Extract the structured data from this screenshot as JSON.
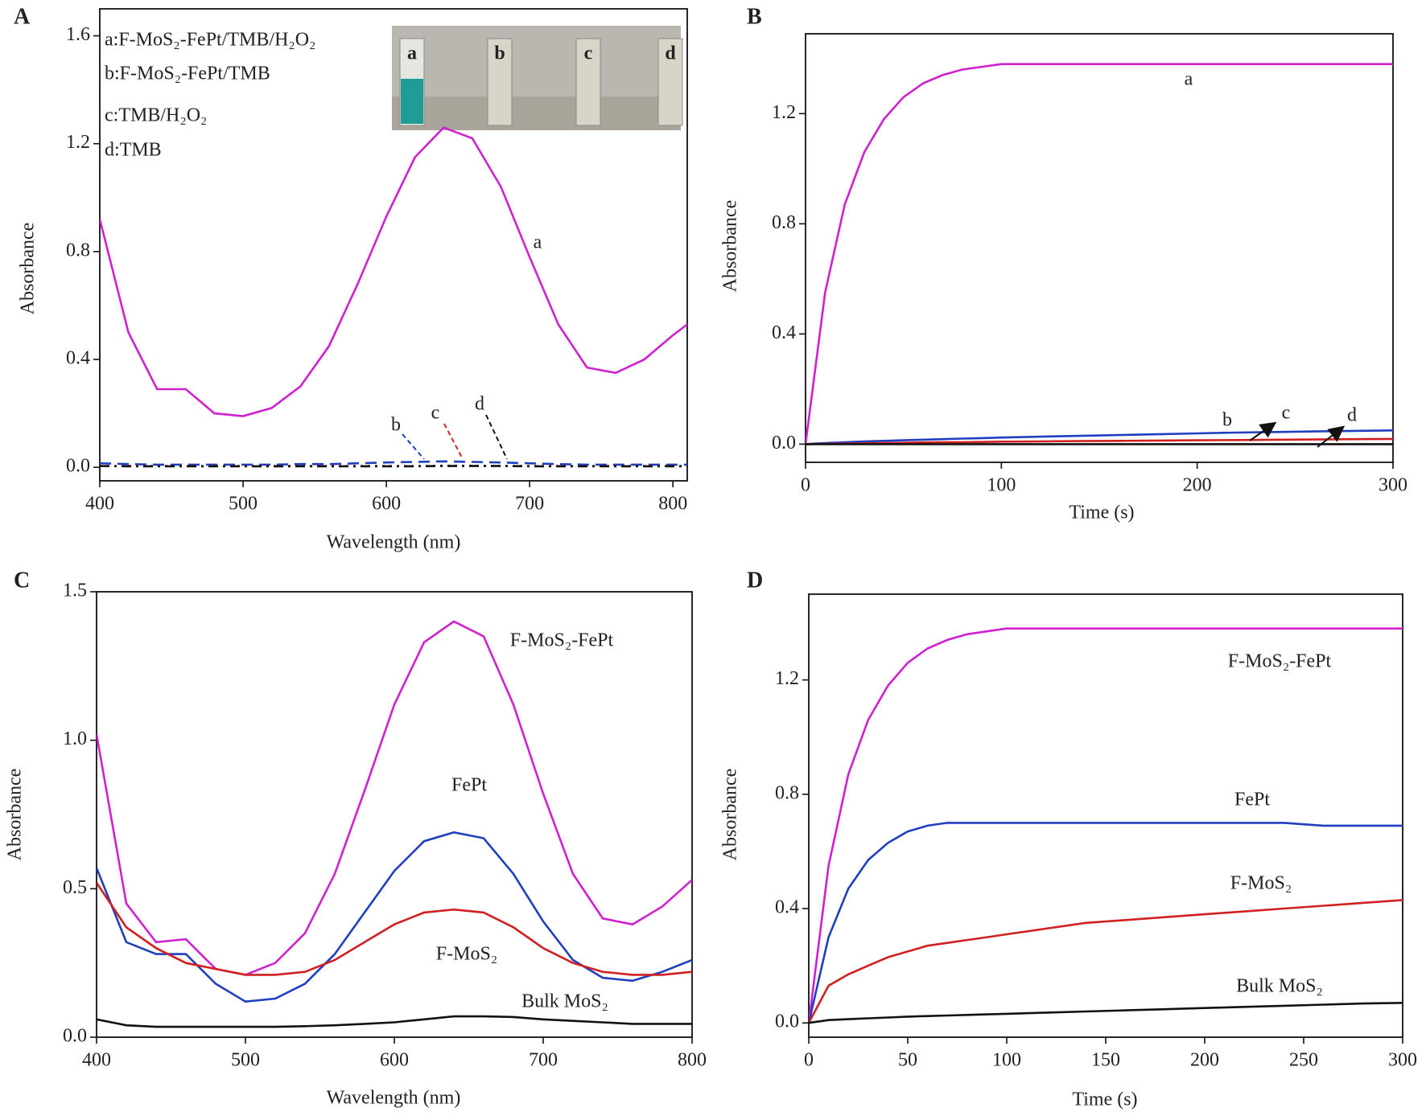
{
  "chart_data": [
    {
      "type": "line",
      "label": "A",
      "xlabel": "Wavelength (nm)",
      "ylabel": "Absorbance",
      "x": [
        400,
        420,
        440,
        460,
        480,
        500,
        520,
        540,
        560,
        580,
        600,
        620,
        640,
        660,
        680,
        700,
        720,
        740,
        760,
        780,
        800,
        810
      ],
      "xlim": [
        400,
        810
      ],
      "ylim": [
        -0.05,
        1.7
      ],
      "xticks": [
        400,
        500,
        600,
        700,
        800
      ],
      "yticks": [
        {
          "value": 0,
          "label": "0.0"
        },
        0.4,
        0.8,
        1.2,
        1.6
      ],
      "legend_text": [
        "a:F-MoS₂-FePt/TMB/H₂O₂",
        "b:F-MoS₂-FePt/TMB",
        "c:TMB/H₂O₂",
        "d:TMB"
      ],
      "inset_labels": [
        "a",
        "b",
        "c",
        "d"
      ],
      "series": [
        {
          "name": "a",
          "color": "#d020d0",
          "line_style": "solid",
          "values": [
            0.92,
            0.5,
            0.29,
            0.29,
            0.2,
            0.19,
            0.22,
            0.3,
            0.45,
            0.68,
            0.93,
            1.15,
            1.26,
            1.22,
            1.04,
            0.78,
            0.53,
            0.37,
            0.35,
            0.4,
            0.49,
            0.53
          ]
        },
        {
          "name": "b",
          "color": "#1f3fbf",
          "line_style": "dashed",
          "values": [
            0.015,
            0.012,
            0.01,
            0.01,
            0.01,
            0.01,
            0.01,
            0.012,
            0.012,
            0.015,
            0.018,
            0.02,
            0.022,
            0.02,
            0.018,
            0.015,
            0.012,
            0.01,
            0.01,
            0.01,
            0.01,
            0.01
          ]
        },
        {
          "name": "c",
          "color": "#d02020",
          "line_style": "dotted",
          "values": [
            0.005,
            0.005,
            0.005,
            0.005,
            0.005,
            0.005,
            0.005,
            0.005,
            0.005,
            0.005,
            0.005,
            0.005,
            0.006,
            0.006,
            0.005,
            0.005,
            0.005,
            0.005,
            0.005,
            0.005,
            0.005,
            0.005
          ]
        },
        {
          "name": "d",
          "color": "#111111",
          "line_style": "dashdot",
          "values": [
            0.005,
            0.004,
            0.004,
            0.004,
            0.004,
            0.004,
            0.004,
            0.004,
            0.004,
            0.004,
            0.004,
            0.004,
            0.005,
            0.005,
            0.005,
            0.004,
            0.004,
            0.004,
            0.004,
            0.004,
            0.004,
            0.004
          ]
        }
      ]
    },
    {
      "type": "line",
      "label": "B",
      "xlabel": "Time (s)",
      "ylabel": "Absorbance",
      "x": [
        0,
        10,
        20,
        30,
        40,
        50,
        60,
        70,
        80,
        90,
        100,
        120,
        140,
        160,
        180,
        200,
        220,
        240,
        260,
        280,
        300
      ],
      "xlim": [
        0,
        300
      ],
      "ylim": [
        -0.066,
        1.49
      ],
      "xticks": [
        0,
        100,
        200,
        300
      ],
      "yticks": [
        {
          "value": 0,
          "label": "0.0"
        },
        0.4,
        0.8,
        1.2
      ],
      "series": [
        {
          "name": "a",
          "color": "#d020d0",
          "line_style": "solid",
          "values": [
            0,
            0.55,
            0.87,
            1.06,
            1.18,
            1.26,
            1.31,
            1.34,
            1.36,
            1.37,
            1.38,
            1.38,
            1.38,
            1.38,
            1.38,
            1.38,
            1.38,
            1.38,
            1.38,
            1.38,
            1.38
          ]
        },
        {
          "name": "b",
          "color": "#1f3fbf",
          "line_style": "solid",
          "values": [
            0,
            0.004,
            0.007,
            0.01,
            0.012,
            0.014,
            0.016,
            0.018,
            0.02,
            0.022,
            0.024,
            0.027,
            0.03,
            0.033,
            0.036,
            0.039,
            0.042,
            0.044,
            0.046,
            0.048,
            0.05
          ]
        },
        {
          "name": "c",
          "color": "#d02020",
          "line_style": "solid",
          "values": [
            0,
            0.001,
            0.002,
            0.003,
            0.004,
            0.005,
            0.006,
            0.007,
            0.007,
            0.008,
            0.009,
            0.01,
            0.011,
            0.012,
            0.013,
            0.014,
            0.015,
            0.016,
            0.017,
            0.018,
            0.019
          ]
        },
        {
          "name": "d",
          "color": "#111111",
          "line_style": "solid",
          "values": [
            0,
            0,
            0,
            0,
            0,
            0,
            0,
            0,
            0,
            0,
            0,
            0,
            0,
            0,
            0,
            0,
            0,
            0,
            0,
            0,
            0
          ]
        }
      ]
    },
    {
      "type": "line",
      "label": "C",
      "xlabel": "Wavelength (nm)",
      "ylabel": "Absorbance",
      "x": [
        400,
        420,
        440,
        460,
        480,
        500,
        520,
        540,
        560,
        580,
        600,
        620,
        640,
        660,
        680,
        700,
        720,
        740,
        760,
        780,
        800
      ],
      "xlim": [
        400,
        800
      ],
      "ylim": [
        0,
        1.5
      ],
      "xticks": [
        400,
        500,
        600,
        700,
        800
      ],
      "yticks": [
        {
          "value": 0,
          "label": "0.0"
        },
        0.5,
        {
          "value": 1,
          "label": "1.0"
        },
        1.5
      ],
      "series": [
        {
          "name": "F-MoS₂-FePt",
          "color": "#d020d0",
          "line_style": "solid",
          "values": [
            1.02,
            0.45,
            0.32,
            0.33,
            0.23,
            0.21,
            0.25,
            0.35,
            0.55,
            0.83,
            1.12,
            1.33,
            1.4,
            1.35,
            1.12,
            0.82,
            0.55,
            0.4,
            0.38,
            0.44,
            0.53
          ]
        },
        {
          "name": "FePt",
          "color": "#1f3fbf",
          "line_style": "solid",
          "values": [
            0.57,
            0.32,
            0.28,
            0.28,
            0.18,
            0.12,
            0.13,
            0.18,
            0.28,
            0.42,
            0.56,
            0.66,
            0.69,
            0.67,
            0.55,
            0.39,
            0.26,
            0.2,
            0.19,
            0.22,
            0.26
          ]
        },
        {
          "name": "F-MoS₂",
          "color": "#d02020",
          "line_style": "solid",
          "values": [
            0.52,
            0.37,
            0.3,
            0.25,
            0.23,
            0.21,
            0.21,
            0.22,
            0.26,
            0.32,
            0.38,
            0.42,
            0.43,
            0.42,
            0.37,
            0.3,
            0.25,
            0.22,
            0.21,
            0.21,
            0.22
          ]
        },
        {
          "name": "Bulk MoS₂",
          "color": "#111111",
          "line_style": "solid",
          "values": [
            0.06,
            0.04,
            0.035,
            0.035,
            0.035,
            0.035,
            0.035,
            0.037,
            0.04,
            0.045,
            0.05,
            0.06,
            0.07,
            0.07,
            0.068,
            0.06,
            0.055,
            0.05,
            0.045,
            0.045,
            0.045
          ]
        }
      ]
    },
    {
      "type": "line",
      "label": "D",
      "xlabel": "Time (s)",
      "ylabel": "Absorbance",
      "x": [
        0,
        10,
        20,
        30,
        40,
        50,
        60,
        70,
        80,
        90,
        100,
        120,
        140,
        160,
        180,
        200,
        220,
        240,
        260,
        280,
        300
      ],
      "xlim": [
        0,
        300
      ],
      "ylim": [
        -0.05,
        1.5
      ],
      "xticks": [
        0,
        50,
        100,
        150,
        200,
        250,
        300
      ],
      "yticks": [
        {
          "value": 0,
          "label": "0.0"
        },
        0.4,
        0.8,
        1.2
      ],
      "series": [
        {
          "name": "F-MoS₂-FePt",
          "color": "#d020d0",
          "line_style": "solid",
          "values": [
            0,
            0.55,
            0.87,
            1.06,
            1.18,
            1.26,
            1.31,
            1.34,
            1.36,
            1.37,
            1.38,
            1.38,
            1.38,
            1.38,
            1.38,
            1.38,
            1.38,
            1.38,
            1.38,
            1.38,
            1.38
          ]
        },
        {
          "name": "FePt",
          "color": "#1f3fbf",
          "line_style": "solid",
          "values": [
            0,
            0.3,
            0.47,
            0.57,
            0.63,
            0.67,
            0.69,
            0.7,
            0.7,
            0.7,
            0.7,
            0.7,
            0.7,
            0.7,
            0.7,
            0.7,
            0.7,
            0.7,
            0.69,
            0.69,
            0.69
          ]
        },
        {
          "name": "F-MoS₂",
          "color": "#d02020",
          "line_style": "solid",
          "values": [
            0,
            0.13,
            0.17,
            0.2,
            0.23,
            0.25,
            0.27,
            0.28,
            0.29,
            0.3,
            0.31,
            0.33,
            0.35,
            0.36,
            0.37,
            0.38,
            0.39,
            0.4,
            0.41,
            0.42,
            0.43
          ]
        },
        {
          "name": "Bulk MoS₂",
          "color": "#111111",
          "line_style": "solid",
          "values": [
            0,
            0.01,
            0.013,
            0.016,
            0.019,
            0.022,
            0.024,
            0.026,
            0.028,
            0.03,
            0.032,
            0.036,
            0.04,
            0.044,
            0.048,
            0.052,
            0.056,
            0.06,
            0.064,
            0.068,
            0.07
          ]
        }
      ]
    }
  ]
}
